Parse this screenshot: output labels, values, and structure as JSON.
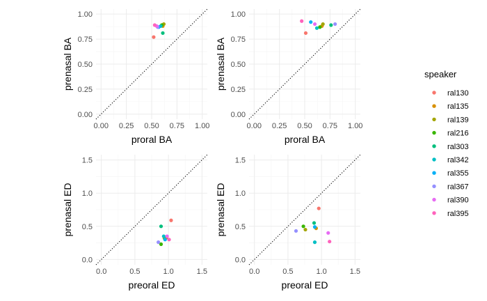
{
  "colors": {
    "grid_major": "#ebebeb",
    "grid_minor": "#f5f5f5",
    "identity_line": "#000000",
    "tick_text": "#4d4d4d"
  },
  "legend": {
    "title": "speaker",
    "placement": "right",
    "items": [
      {
        "label": "ral130",
        "color": "#F8766D"
      },
      {
        "label": "ral135",
        "color": "#D89000"
      },
      {
        "label": "ral139",
        "color": "#A3A500"
      },
      {
        "label": "ral216",
        "color": "#39B600"
      },
      {
        "label": "ral303",
        "color": "#00BF7D"
      },
      {
        "label": "ral342",
        "color": "#00BFC4"
      },
      {
        "label": "ral355",
        "color": "#00B0F6"
      },
      {
        "label": "ral367",
        "color": "#9590FF"
      },
      {
        "label": "ral390",
        "color": "#E76BF3"
      },
      {
        "label": "ral395",
        "color": "#FF62BC"
      }
    ]
  },
  "chart_data": [
    {
      "type": "scatter",
      "xlabel": "proral BA",
      "ylabel": "prenasal BA",
      "xlim": [
        -0.05,
        1.05
      ],
      "ylim": [
        -0.05,
        1.05
      ],
      "xticks": [
        "0.00",
        "0.25",
        "0.50",
        "0.75",
        "1.00"
      ],
      "yticks": [
        "0.00",
        "0.25",
        "0.50",
        "0.75",
        "1.00"
      ],
      "identity_line": true,
      "grid": true,
      "points": [
        {
          "speaker": "ral130",
          "x": 0.52,
          "y": 0.77
        },
        {
          "speaker": "ral135",
          "x": 0.61,
          "y": 0.88
        },
        {
          "speaker": "ral139",
          "x": 0.62,
          "y": 0.9
        },
        {
          "speaker": "ral216",
          "x": 0.6,
          "y": 0.89
        },
        {
          "speaker": "ral303",
          "x": 0.61,
          "y": 0.81
        },
        {
          "speaker": "ral342",
          "x": 0.59,
          "y": 0.88
        },
        {
          "speaker": "ral355",
          "x": 0.57,
          "y": 0.87
        },
        {
          "speaker": "ral367",
          "x": 0.56,
          "y": 0.87
        },
        {
          "speaker": "ral390",
          "x": 0.55,
          "y": 0.88
        },
        {
          "speaker": "ral395",
          "x": 0.53,
          "y": 0.89
        }
      ]
    },
    {
      "type": "scatter",
      "xlabel": "proral BA",
      "ylabel": "prenasal BA",
      "xlim": [
        -0.05,
        1.05
      ],
      "ylim": [
        -0.05,
        1.05
      ],
      "xticks": [
        "0.00",
        "0.25",
        "0.50",
        "0.75",
        "1.00"
      ],
      "yticks": [
        "0.00",
        "0.25",
        "0.50",
        "0.75",
        "1.00"
      ],
      "identity_line": true,
      "grid": true,
      "points": [
        {
          "speaker": "ral130",
          "x": 0.51,
          "y": 0.81
        },
        {
          "speaker": "ral135",
          "x": 0.67,
          "y": 0.88
        },
        {
          "speaker": "ral139",
          "x": 0.68,
          "y": 0.9
        },
        {
          "speaker": "ral216",
          "x": 0.65,
          "y": 0.87
        },
        {
          "speaker": "ral303",
          "x": 0.76,
          "y": 0.89
        },
        {
          "speaker": "ral342",
          "x": 0.62,
          "y": 0.86
        },
        {
          "speaker": "ral355",
          "x": 0.56,
          "y": 0.92
        },
        {
          "speaker": "ral367",
          "x": 0.8,
          "y": 0.9
        },
        {
          "speaker": "ral390",
          "x": 0.6,
          "y": 0.9
        },
        {
          "speaker": "ral395",
          "x": 0.47,
          "y": 0.93
        }
      ]
    },
    {
      "type": "scatter",
      "xlabel": "preoral ED",
      "ylabel": "prenasal ED",
      "xlim": [
        -0.08,
        1.58
      ],
      "ylim": [
        -0.08,
        1.58
      ],
      "xticks": [
        "0.0",
        "0.5",
        "1.0",
        "1.5"
      ],
      "yticks": [
        "0.0",
        "0.5",
        "1.0",
        "1.5"
      ],
      "identity_line": true,
      "grid": true,
      "points": [
        {
          "speaker": "ral130",
          "x": 1.04,
          "y": 0.59
        },
        {
          "speaker": "ral135",
          "x": 0.97,
          "y": 0.33
        },
        {
          "speaker": "ral139",
          "x": 0.94,
          "y": 0.32
        },
        {
          "speaker": "ral216",
          "x": 0.89,
          "y": 0.23
        },
        {
          "speaker": "ral303",
          "x": 0.89,
          "y": 0.5
        },
        {
          "speaker": "ral342",
          "x": 0.93,
          "y": 0.35
        },
        {
          "speaker": "ral355",
          "x": 0.95,
          "y": 0.3
        },
        {
          "speaker": "ral367",
          "x": 0.85,
          "y": 0.26
        },
        {
          "speaker": "ral390",
          "x": 0.98,
          "y": 0.35
        },
        {
          "speaker": "ral395",
          "x": 1.01,
          "y": 0.3
        }
      ]
    },
    {
      "type": "scatter",
      "xlabel": "preoral ED",
      "ylabel": "prenasal ED",
      "xlim": [
        -0.08,
        1.58
      ],
      "ylim": [
        -0.08,
        1.58
      ],
      "xticks": [
        "0.0",
        "0.5",
        "1.0",
        "1.5"
      ],
      "yticks": [
        "0.0",
        "0.5",
        "1.0",
        "1.5"
      ],
      "identity_line": true,
      "grid": true,
      "points": [
        {
          "speaker": "ral130",
          "x": 0.96,
          "y": 0.77
        },
        {
          "speaker": "ral135",
          "x": 0.92,
          "y": 0.47
        },
        {
          "speaker": "ral139",
          "x": 0.76,
          "y": 0.45
        },
        {
          "speaker": "ral216",
          "x": 0.73,
          "y": 0.5
        },
        {
          "speaker": "ral303",
          "x": 0.89,
          "y": 0.55
        },
        {
          "speaker": "ral342",
          "x": 0.9,
          "y": 0.26
        },
        {
          "speaker": "ral355",
          "x": 0.9,
          "y": 0.49
        },
        {
          "speaker": "ral367",
          "x": 0.62,
          "y": 0.43
        },
        {
          "speaker": "ral390",
          "x": 1.1,
          "y": 0.4
        },
        {
          "speaker": "ral395",
          "x": 1.12,
          "y": 0.27
        }
      ]
    }
  ]
}
